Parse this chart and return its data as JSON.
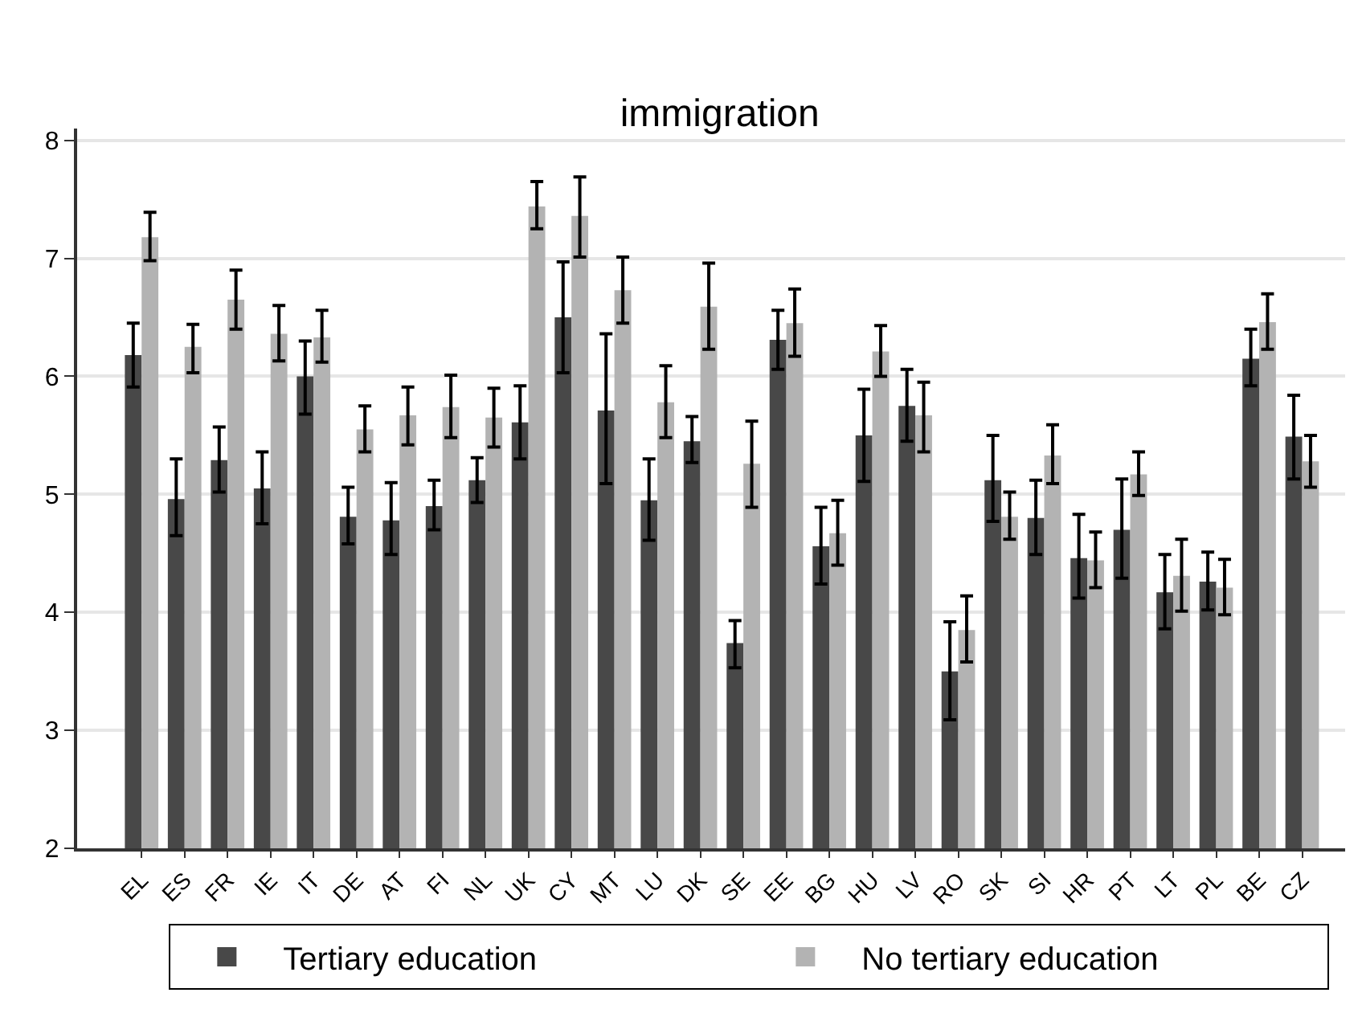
{
  "chart_data": {
    "type": "bar",
    "title": "immigration",
    "categories": [
      "EL",
      "ES",
      "FR",
      "IE",
      "IT",
      "DE",
      "AT",
      "FI",
      "NL",
      "UK",
      "CY",
      "MT",
      "LU",
      "DK",
      "SE",
      "EE",
      "BG",
      "HU",
      "LV",
      "RO",
      "SK",
      "SI",
      "HR",
      "PT",
      "LT",
      "PL",
      "BE",
      "CZ"
    ],
    "series": [
      {
        "name": "Tertiary education",
        "color": "#484848",
        "values": [
          6.18,
          4.96,
          5.29,
          5.05,
          6.0,
          4.81,
          4.78,
          4.9,
          5.12,
          5.61,
          6.5,
          5.71,
          4.95,
          5.45,
          3.74,
          6.31,
          4.56,
          5.5,
          5.75,
          3.5,
          5.12,
          4.8,
          4.46,
          4.7,
          4.17,
          4.26,
          6.15,
          5.49
        ],
        "errors": [
          [
            5.91,
            6.45
          ],
          [
            4.65,
            5.3
          ],
          [
            5.02,
            5.57
          ],
          [
            4.75,
            5.36
          ],
          [
            5.68,
            6.3
          ],
          [
            4.58,
            5.06
          ],
          [
            4.49,
            5.1
          ],
          [
            4.7,
            5.12
          ],
          [
            4.93,
            5.31
          ],
          [
            5.3,
            5.92
          ],
          [
            6.03,
            6.97
          ],
          [
            5.09,
            6.36
          ],
          [
            4.61,
            5.3
          ],
          [
            5.27,
            5.66
          ],
          [
            3.53,
            3.93
          ],
          [
            6.06,
            6.56
          ],
          [
            4.24,
            4.89
          ],
          [
            5.11,
            5.89
          ],
          [
            5.45,
            6.06
          ],
          [
            3.09,
            3.92
          ],
          [
            4.77,
            5.5
          ],
          [
            4.49,
            5.12
          ],
          [
            4.12,
            4.83
          ],
          [
            4.29,
            5.13
          ],
          [
            3.86,
            4.49
          ],
          [
            4.02,
            4.51
          ],
          [
            5.92,
            6.4
          ],
          [
            5.13,
            5.84
          ]
        ]
      },
      {
        "name": "No tertiary education",
        "color": "#b3b3b3",
        "values": [
          7.18,
          6.25,
          6.65,
          6.36,
          6.33,
          5.55,
          5.67,
          5.74,
          5.65,
          7.44,
          7.36,
          6.73,
          5.78,
          6.59,
          5.26,
          6.45,
          4.67,
          6.21,
          5.67,
          3.85,
          4.81,
          5.33,
          4.44,
          5.17,
          4.31,
          4.21,
          6.46,
          5.28
        ],
        "errors": [
          [
            6.98,
            7.39
          ],
          [
            6.03,
            6.44
          ],
          [
            6.4,
            6.9
          ],
          [
            6.13,
            6.6
          ],
          [
            6.12,
            6.56
          ],
          [
            5.36,
            5.75
          ],
          [
            5.42,
            5.91
          ],
          [
            5.48,
            6.01
          ],
          [
            5.4,
            5.9
          ],
          [
            7.25,
            7.65
          ],
          [
            7.01,
            7.69
          ],
          [
            6.45,
            7.01
          ],
          [
            5.48,
            6.09
          ],
          [
            6.23,
            6.96
          ],
          [
            4.89,
            5.62
          ],
          [
            6.17,
            6.74
          ],
          [
            4.4,
            4.95
          ],
          [
            6.0,
            6.43
          ],
          [
            5.36,
            5.95
          ],
          [
            3.58,
            4.14
          ],
          [
            4.62,
            5.02
          ],
          [
            5.09,
            5.59
          ],
          [
            4.21,
            4.68
          ],
          [
            4.99,
            5.36
          ],
          [
            4.01,
            4.62
          ],
          [
            3.98,
            4.45
          ],
          [
            6.23,
            6.7
          ],
          [
            5.06,
            5.5
          ]
        ]
      }
    ],
    "ylim": [
      2,
      8.1
    ],
    "yticks": [
      2,
      3,
      4,
      5,
      6,
      7,
      8
    ],
    "grid": "y",
    "legend": "bottom"
  }
}
